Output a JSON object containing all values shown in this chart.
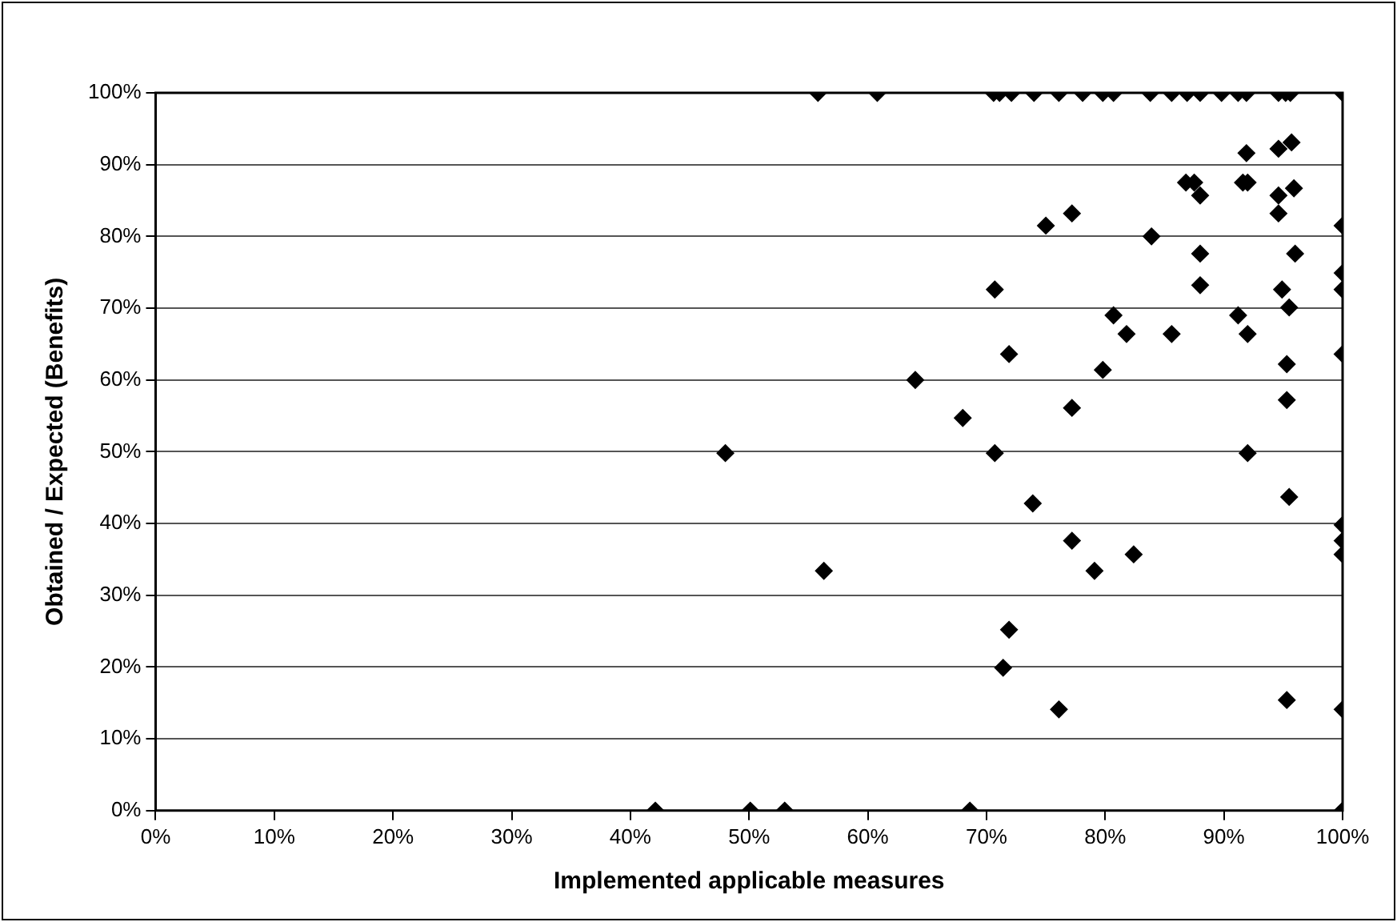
{
  "chart_data": {
    "type": "scatter",
    "xlabel": "Implemented applicable measures",
    "ylabel": "Obtained / Expected (Benefits)",
    "x": [
      55.8,
      60.8,
      70.6,
      71.1,
      72.1,
      74.0,
      76.1,
      78.1,
      79.8,
      80.7,
      83.8,
      85.6,
      86.9,
      88.0,
      89.8,
      91.2,
      91.9,
      94.6,
      95.2,
      95.6,
      100,
      91.9,
      94.6,
      95.7,
      86.8,
      87.5,
      88.0,
      91.6,
      92.0,
      94.6,
      95.9,
      77.2,
      75.0,
      94.6,
      100,
      83.9,
      88.0,
      96.0,
      100,
      100,
      70.7,
      88.0,
      94.9,
      95.5,
      80.7,
      91.2,
      81.8,
      85.6,
      92.0,
      71.9,
      100,
      79.8,
      95.3,
      77.2,
      95.3,
      70.7,
      92.0,
      64.0,
      68.0,
      48.0,
      56.3,
      42.1,
      50.1,
      53.0,
      68.6,
      73.9,
      95.5,
      100,
      100,
      100,
      77.2,
      79.1,
      82.4,
      71.9,
      71.4,
      76.1,
      95.3,
      100,
      100
    ],
    "values": [
      100,
      100,
      100,
      100,
      100,
      100,
      100,
      100,
      100,
      100,
      100,
      100,
      100,
      100,
      100,
      100,
      100,
      100,
      100,
      100,
      100,
      91.6,
      92.2,
      93.1,
      87.5,
      87.5,
      85.7,
      87.5,
      87.5,
      85.7,
      86.7,
      83.2,
      81.5,
      83.2,
      81.5,
      80.0,
      77.6,
      77.6,
      74.9,
      72.6,
      72.6,
      73.2,
      72.6,
      70.1,
      69.0,
      69.0,
      66.4,
      66.4,
      66.4,
      63.6,
      63.6,
      61.4,
      62.2,
      56.1,
      57.2,
      49.8,
      49.8,
      60.0,
      54.7,
      49.8,
      33.4,
      0,
      0,
      0,
      0,
      42.8,
      43.7,
      39.8,
      37.6,
      35.7,
      37.6,
      33.4,
      35.7,
      25.2,
      19.9,
      14.1,
      15.4,
      14.1,
      0
    ],
    "color": "#000000",
    "marker": "diamond",
    "grid": "y",
    "legend": false,
    "xlim": [
      0,
      100
    ],
    "ylim": [
      0,
      100
    ],
    "xticks": [
      {
        "value": 0,
        "label": "0%"
      },
      {
        "value": 10,
        "label": "10%"
      },
      {
        "value": 20,
        "label": "20%"
      },
      {
        "value": 30,
        "label": "30%"
      },
      {
        "value": 40,
        "label": "40%"
      },
      {
        "value": 50,
        "label": "50%"
      },
      {
        "value": 60,
        "label": "60%"
      },
      {
        "value": 70,
        "label": "70%"
      },
      {
        "value": 80,
        "label": "80%"
      },
      {
        "value": 90,
        "label": "90%"
      },
      {
        "value": 100,
        "label": "100%"
      }
    ],
    "yticks": [
      {
        "value": 0,
        "label": "0%"
      },
      {
        "value": 10,
        "label": "10%"
      },
      {
        "value": 20,
        "label": "20%"
      },
      {
        "value": 30,
        "label": "30%"
      },
      {
        "value": 40,
        "label": "40%"
      },
      {
        "value": 50,
        "label": "50%"
      },
      {
        "value": 60,
        "label": "60%"
      },
      {
        "value": 70,
        "label": "70%"
      },
      {
        "value": 80,
        "label": "80%"
      },
      {
        "value": 90,
        "label": "90%"
      },
      {
        "value": 100,
        "label": "100%"
      }
    ]
  }
}
